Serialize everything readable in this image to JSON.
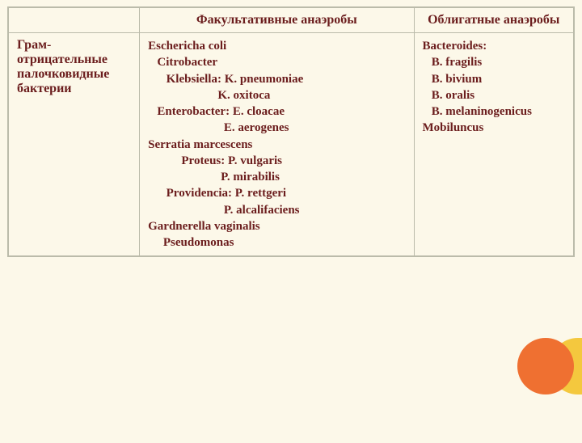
{
  "colors": {
    "background": "#fcf8e9",
    "border": "#bba",
    "text_primary": "#6b1d1d",
    "deco_circle": "#ef7031",
    "deco_slice": "#f4c83e"
  },
  "table": {
    "headers": {
      "blank": "",
      "col2": "Факультативные анаэробы",
      "col3": "Облигатные анаэробы"
    },
    "row": {
      "label1": "Грам-",
      "label2": "отрицательные",
      "label3": "палочковидные",
      "label4": "бактерии",
      "facultative": [
        "Eschericha coli",
        "   Citrobacter",
        "      Klebsiella: K. pneumoniae",
        "                       K. oxitoca",
        "   Enterobacter: E. cloacae",
        "                         E. aerogenes",
        "Serratia marcescens",
        "           Proteus: P. vulgaris",
        "                        P. mirabilis",
        "      Providencia: P. rettgeri",
        "                         P. alcalifaciens",
        "Gardnerella vaginalis",
        "     Pseudomonas"
      ],
      "obligate": [
        "Bacteroides:",
        "   B. fragilis",
        "   B. bivium",
        "   B. oralis",
        "   B. melaninogenicus",
        "Mobiluncus"
      ]
    }
  }
}
